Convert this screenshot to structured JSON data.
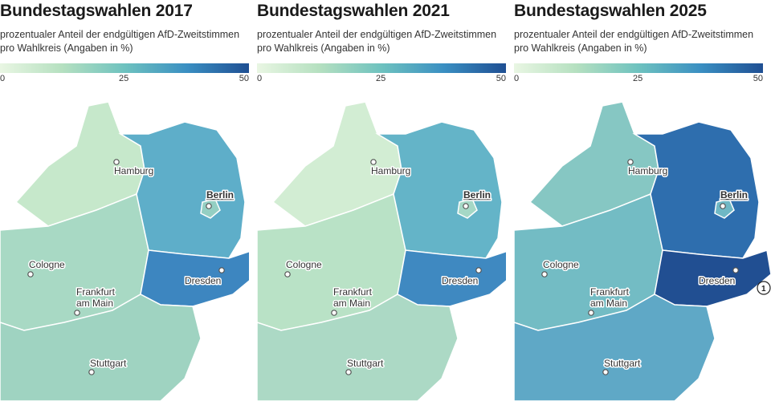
{
  "legend": {
    "min": "0",
    "mid": "25",
    "max": "50"
  },
  "panels": [
    {
      "title": "Bundestagswahlen 2017",
      "subtitle": "prozentualer Anteil der endgültigen AfD-Zweitstimmen pro Wahlkreis (Angaben in %)",
      "colors": {
        "west": "#a8d9c4",
        "north": "#c6e8cb",
        "south": "#9fd3c1",
        "east": "#5eaec9",
        "saxony": "#3d86c0",
        "berlin": "#94cfc3"
      }
    },
    {
      "title": "Bundestagswahlen 2021",
      "subtitle": "prozentualer Anteil der endgültigen AfD-Zweitstimmen pro Wahlkreis (Angaben in %)",
      "colors": {
        "west": "#b9e2c6",
        "north": "#d2edd3",
        "south": "#acd9c5",
        "east": "#64b4c8",
        "saxony": "#3f89c1",
        "berlin": "#a5d8c6"
      }
    },
    {
      "title": "Bundestagswahlen 2025",
      "subtitle": "prozentualer Anteil der endgültigen AfD-Zweitstimmen pro Wahlkreis (Angaben in %)",
      "colors": {
        "west": "#73bcc4",
        "north": "#86c7c3",
        "south": "#5fa8c6",
        "east": "#2e6eae",
        "saxony": "#214f92",
        "berlin": "#6fb8c5"
      },
      "annotation": "1"
    }
  ],
  "cities": {
    "hamburg": "Hamburg",
    "berlin": "Berlin",
    "cologne": "Cologne",
    "dresden": "Dresden",
    "frankfurt_line1": "Frankfurt",
    "frankfurt_line2": "am Main",
    "stuttgart": "Stuttgart"
  }
}
